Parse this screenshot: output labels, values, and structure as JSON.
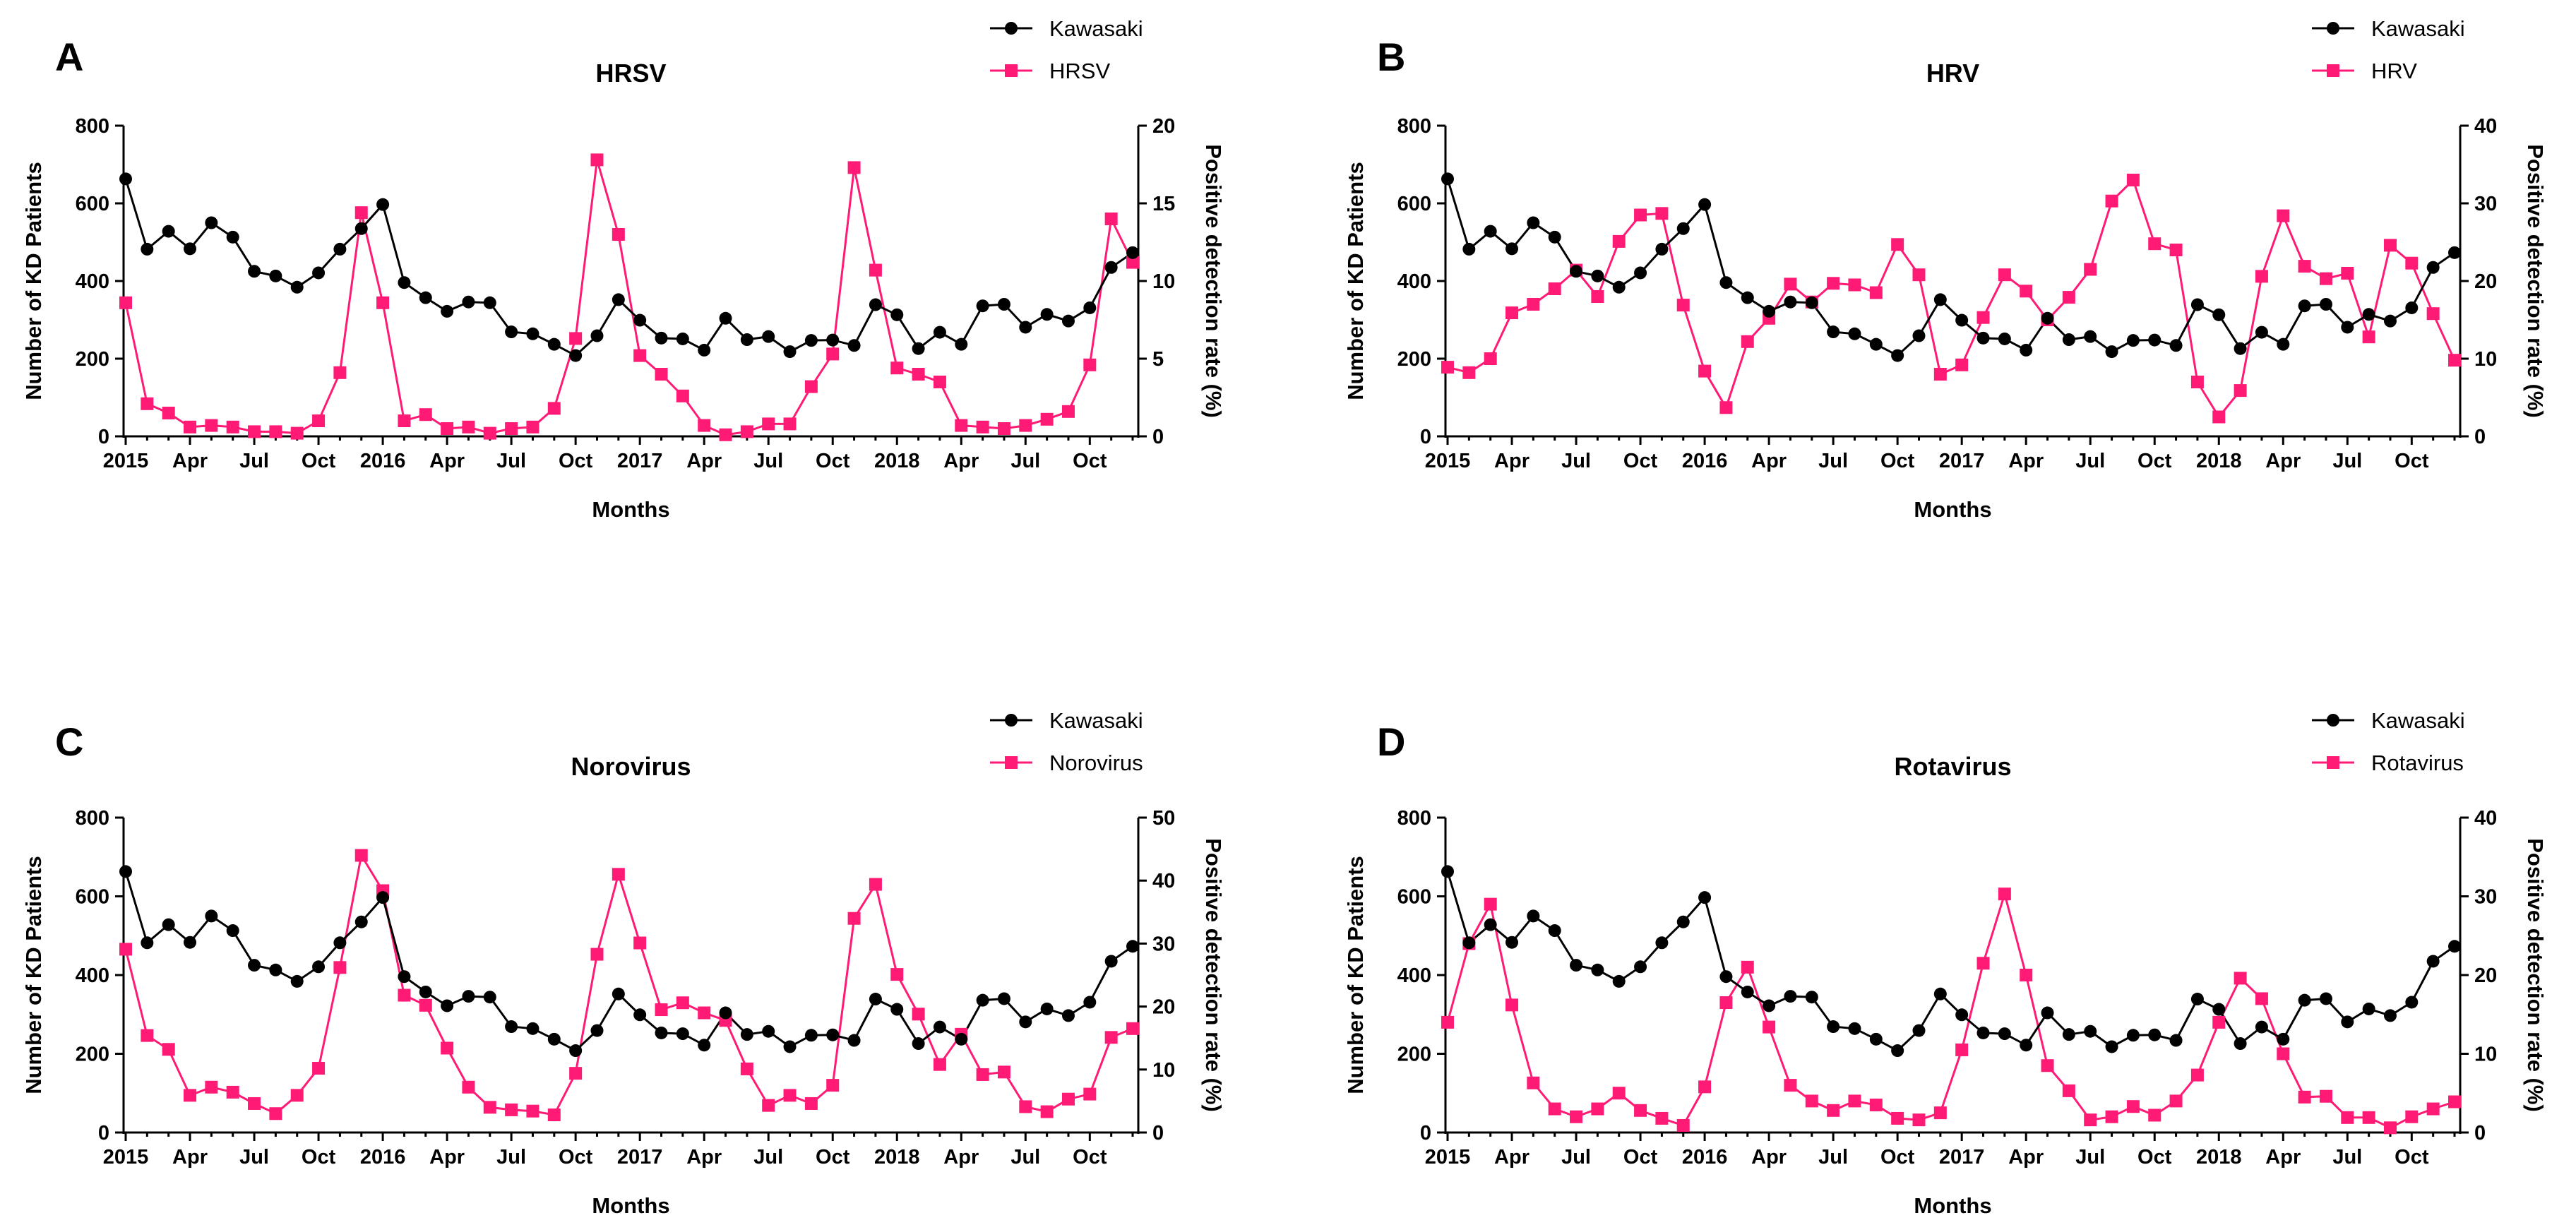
{
  "figure": {
    "months_per_point": "2015-01 to 2018-12 (48 monthly points)",
    "kawasaki_series_name": "Kawasaki",
    "x_tick_labels": [
      "2015",
      "Apr",
      "Jul",
      "Oct",
      "2016",
      "Apr",
      "Jul",
      "Oct",
      "2017",
      "Apr",
      "Jul",
      "Oct",
      "2018",
      "Apr",
      "Jul",
      "Oct"
    ],
    "x_axis_title": "Months",
    "left_axis_title": "Number of KD Patients",
    "right_axis_title": "Positive detection rate (%)",
    "colors": {
      "kawasaki": "#000000",
      "virus": "#ff1a75"
    }
  },
  "chart_data": [
    {
      "panel": "A",
      "type": "line",
      "title": "HRSV",
      "xlabel": "Months",
      "ylabel": "Number of KD Patients",
      "y2label": "Positive detection rate (%)",
      "ylim": [
        0,
        800
      ],
      "y_ticks": [
        "0",
        "200",
        "400",
        "600",
        "800"
      ],
      "y2lim": [
        0,
        20
      ],
      "y2_ticks": [
        "0",
        "5",
        "10",
        "15",
        "20"
      ],
      "legend": [
        "Kawasaki",
        "HRSV"
      ],
      "series": [
        {
          "name": "Kawasaki",
          "axis": "left",
          "values": [
            663,
            482,
            528,
            483,
            550,
            513,
            425,
            413,
            384,
            421,
            482,
            535,
            597,
            396,
            357,
            322,
            346,
            344,
            269,
            264,
            237,
            208,
            259,
            352,
            299,
            253,
            251,
            222,
            304,
            249,
            257,
            218,
            247,
            248,
            234,
            339,
            313,
            226,
            268,
            237,
            336,
            340,
            281,
            314,
            297,
            331,
            435,
            473
          ]
        },
        {
          "name": "HRSV",
          "axis": "right",
          "values": [
            8.6,
            2.1,
            1.5,
            0.6,
            0.7,
            0.6,
            0.3,
            0.3,
            0.2,
            1.0,
            4.1,
            14.4,
            8.6,
            1.0,
            1.4,
            0.5,
            0.6,
            0.2,
            0.5,
            0.6,
            1.8,
            6.3,
            17.8,
            13.0,
            5.2,
            4.0,
            2.6,
            0.7,
            0.1,
            0.3,
            0.8,
            0.8,
            3.2,
            5.3,
            17.3,
            10.7,
            4.4,
            4.0,
            3.5,
            0.7,
            0.6,
            0.5,
            0.7,
            1.1,
            1.6,
            4.6,
            14.0,
            11.2
          ]
        }
      ]
    },
    {
      "panel": "B",
      "type": "line",
      "title": "HRV",
      "xlabel": "Months",
      "ylabel": "Number of KD Patients",
      "y2label": "Positive detection rate (%)",
      "ylim": [
        0,
        800
      ],
      "y_ticks": [
        "0",
        "200",
        "400",
        "600",
        "800"
      ],
      "y2lim": [
        0,
        40
      ],
      "y2_ticks": [
        "0",
        "10",
        "20",
        "30",
        "40"
      ],
      "legend": [
        "Kawasaki",
        "HRV"
      ],
      "series": [
        {
          "name": "Kawasaki",
          "axis": "left",
          "values": [
            663,
            482,
            528,
            483,
            550,
            513,
            425,
            413,
            384,
            421,
            482,
            535,
            597,
            396,
            357,
            322,
            346,
            344,
            269,
            264,
            237,
            208,
            259,
            352,
            299,
            253,
            251,
            222,
            304,
            249,
            257,
            218,
            247,
            248,
            234,
            339,
            313,
            226,
            268,
            237,
            336,
            340,
            281,
            314,
            297,
            331,
            435,
            473
          ]
        },
        {
          "name": "HRV",
          "axis": "right",
          "values": [
            8.9,
            8.2,
            10.0,
            15.9,
            17.0,
            19.0,
            21.4,
            18.0,
            25.1,
            28.5,
            28.7,
            16.9,
            8.4,
            3.7,
            12.2,
            15.2,
            19.6,
            17.3,
            19.7,
            19.5,
            18.5,
            24.7,
            20.8,
            8.0,
            9.2,
            15.3,
            20.8,
            18.7,
            15.0,
            17.9,
            21.5,
            30.3,
            33.0,
            24.8,
            24.0,
            7.0,
            2.5,
            5.9,
            20.6,
            28.4,
            21.9,
            20.3,
            21.0,
            12.8,
            24.6,
            22.3,
            15.8,
            9.8
          ]
        }
      ]
    },
    {
      "panel": "C",
      "type": "line",
      "title": "Norovirus",
      "xlabel": "Months",
      "ylabel": "Number of KD Patients",
      "y2label": "Positive detection rate (%)",
      "ylim": [
        0,
        800
      ],
      "y_ticks": [
        "0",
        "200",
        "400",
        "600",
        "800"
      ],
      "y2lim": [
        0,
        50
      ],
      "y2_ticks": [
        "0",
        "10",
        "20",
        "30",
        "40",
        "50"
      ],
      "legend": [
        "Kawasaki",
        "Norovirus"
      ],
      "series": [
        {
          "name": "Kawasaki",
          "axis": "left",
          "values": [
            663,
            482,
            528,
            483,
            550,
            513,
            425,
            413,
            384,
            421,
            482,
            535,
            597,
            396,
            357,
            322,
            346,
            344,
            269,
            264,
            237,
            208,
            259,
            352,
            299,
            253,
            251,
            222,
            304,
            249,
            257,
            218,
            247,
            248,
            234,
            339,
            313,
            226,
            268,
            237,
            336,
            340,
            281,
            314,
            297,
            331,
            435,
            473
          ]
        },
        {
          "name": "Norovirus",
          "axis": "right",
          "values": [
            29.1,
            15.4,
            13.2,
            5.9,
            7.2,
            6.4,
            4.6,
            3.0,
            5.9,
            10.2,
            26.2,
            44.0,
            38.4,
            21.8,
            20.2,
            13.4,
            7.2,
            4.0,
            3.6,
            3.4,
            2.8,
            9.4,
            28.3,
            41.0,
            30.1,
            19.5,
            20.6,
            19.0,
            17.8,
            10.1,
            4.3,
            5.9,
            4.6,
            7.5,
            34.0,
            39.4,
            25.1,
            18.8,
            10.8,
            15.6,
            9.2,
            9.6,
            4.1,
            3.3,
            5.3,
            6.1,
            15.1,
            16.5
          ]
        }
      ]
    },
    {
      "panel": "D",
      "type": "line",
      "title": "Rotavirus",
      "xlabel": "Months",
      "ylabel": "Number of KD Patients",
      "y2label": "Positive detection rate (%)",
      "ylim": [
        0,
        800
      ],
      "y_ticks": [
        "0",
        "200",
        "400",
        "600",
        "800"
      ],
      "y2lim": [
        0,
        40
      ],
      "y2_ticks": [
        "0",
        "10",
        "20",
        "30",
        "40"
      ],
      "legend": [
        "Kawasaki",
        "Rotavirus"
      ],
      "series": [
        {
          "name": "Kawasaki",
          "axis": "left",
          "values": [
            663,
            482,
            528,
            483,
            550,
            513,
            425,
            413,
            384,
            421,
            482,
            535,
            597,
            396,
            357,
            322,
            346,
            344,
            269,
            264,
            237,
            208,
            259,
            352,
            299,
            253,
            251,
            222,
            304,
            249,
            257,
            218,
            247,
            248,
            234,
            339,
            313,
            226,
            268,
            237,
            336,
            340,
            281,
            314,
            297,
            331,
            435,
            473
          ]
        },
        {
          "name": "Rotavirus",
          "axis": "right",
          "values": [
            14.0,
            24.0,
            29.0,
            16.2,
            6.3,
            3.0,
            2.0,
            3.0,
            5.0,
            2.8,
            1.8,
            0.9,
            5.8,
            16.5,
            21.0,
            13.4,
            6.0,
            4.0,
            2.8,
            4.0,
            3.5,
            1.8,
            1.6,
            2.5,
            10.5,
            21.5,
            30.3,
            20.0,
            8.5,
            5.3,
            1.6,
            2.0,
            3.3,
            2.2,
            4.0,
            7.3,
            14.0,
            19.6,
            17.0,
            10.0,
            4.5,
            4.6,
            1.9,
            1.9,
            0.6,
            2.0,
            3.0,
            3.9
          ]
        }
      ]
    }
  ]
}
